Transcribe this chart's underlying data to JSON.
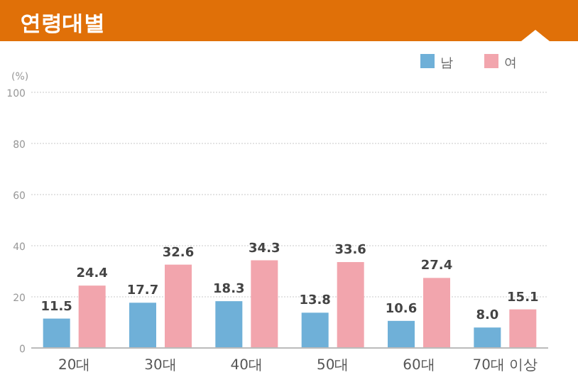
{
  "chart_data": {
    "type": "bar",
    "title": "연령대별",
    "ylabel": "(%)",
    "categories": [
      "20대",
      "30대",
      "40대",
      "50대",
      "60대",
      "70대 이상"
    ],
    "series": [
      {
        "name": "남",
        "color": "#6fb0d8",
        "values": [
          11.5,
          17.7,
          18.3,
          13.8,
          10.6,
          8.0
        ],
        "value_labels": [
          "11.5",
          "17.7",
          "18.3",
          "13.8",
          "10.6",
          "8.0"
        ]
      },
      {
        "name": "여",
        "color": "#f2a5ad",
        "values": [
          24.4,
          32.6,
          34.3,
          33.6,
          27.4,
          15.1
        ],
        "value_labels": [
          "24.4",
          "32.6",
          "34.3",
          "33.6",
          "27.4",
          "15.1"
        ]
      }
    ],
    "ylim": [
      0,
      100
    ],
    "yticks": [
      0,
      20,
      40,
      60,
      80,
      100
    ],
    "grid": "y",
    "legend": "top right"
  }
}
